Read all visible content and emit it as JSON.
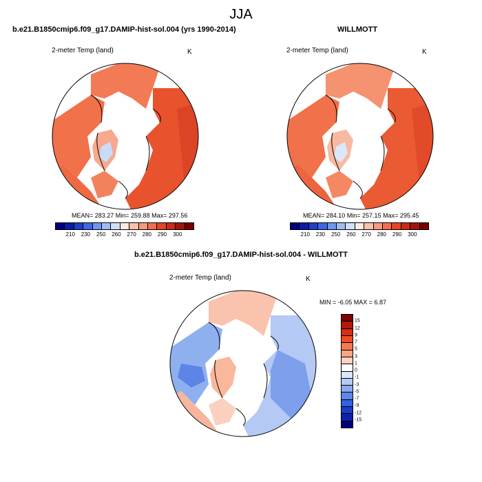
{
  "title": "JJA",
  "panels": {
    "left": {
      "case_title": "b.e21.B1850cmip6.f09_g17.DAMIP-hist-sol.004 (yrs 1990-2014)",
      "variable": "2-meter Temp (land)",
      "unit": "K",
      "stats": "MEAN= 283.27  Min= 259.88  Max= 297.56"
    },
    "right": {
      "case_title": "WILLMOTT",
      "variable": "2-meter Temp (land)",
      "unit": "K",
      "stats": "MEAN= 284.10  Min= 257.15  Max= 295.45"
    },
    "diff": {
      "case_title": "b.e21.B1850cmip6.f09_g17.DAMIP-hist-sol.004 - WILLMOTT",
      "variable": "2-meter Temp (land)",
      "unit": "K",
      "stats": "MIN =  -6.05 MAX =   6.87"
    }
  },
  "abs_colorbar": {
    "colors": [
      "#00007f",
      "#0c1ca6",
      "#1f3ecd",
      "#3f66e8",
      "#6f95f0",
      "#a0bcf4",
      "#cfe0fb",
      "#fdebe2",
      "#fbc2a9",
      "#f7997a",
      "#f16f4e",
      "#e74427",
      "#cc2a12",
      "#a0140a",
      "#780000"
    ],
    "labels": [
      "210",
      "230",
      "250",
      "260",
      "270",
      "280",
      "290",
      "300"
    ]
  },
  "diff_colorbar": {
    "colors": [
      "#7f0000",
      "#b01a0a",
      "#d92d12",
      "#ef4a23",
      "#f6794e",
      "#f9a584",
      "#fcd1bd",
      "#ffffff",
      "#d8e6fc",
      "#b3cbf6",
      "#8aaaf0",
      "#5f87ea",
      "#3560e0",
      "#1a3ccc",
      "#0d22a8",
      "#00007f"
    ],
    "labels": [
      "15",
      "12",
      "9",
      "7",
      "5",
      "3",
      "1",
      "0",
      "-1",
      "-3",
      "-5",
      "-7",
      "-9",
      "-12",
      "-15"
    ]
  }
}
